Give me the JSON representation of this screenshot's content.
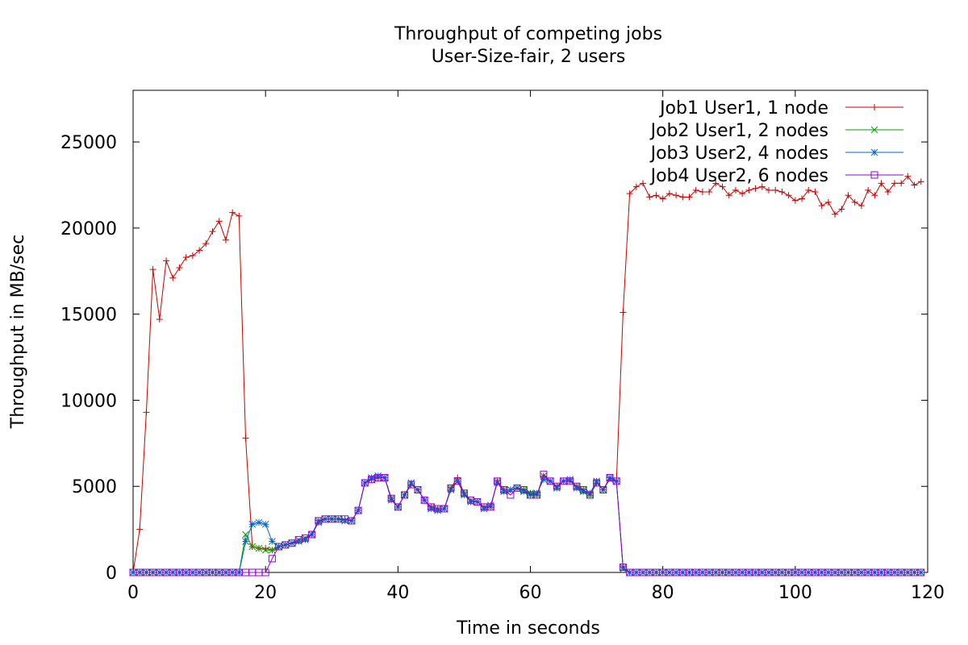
{
  "chart_data": {
    "type": "line",
    "title": "Throughput of competing jobs",
    "subtitle": "User-Size-fair, 2 users",
    "xlabel": "Time in seconds",
    "ylabel": "Throughput in MB/sec",
    "xlim": [
      0,
      120
    ],
    "ylim": [
      0,
      28000
    ],
    "xticks": [
      0,
      20,
      40,
      60,
      80,
      100,
      120
    ],
    "yticks": [
      0,
      5000,
      10000,
      15000,
      20000,
      25000
    ],
    "grid": false,
    "legend_position": "top-right",
    "series": [
      {
        "name": "Job1 User1, 1 node",
        "color": "#cc0000",
        "marker": "plus",
        "x": [
          0,
          1,
          2,
          3,
          4,
          5,
          6,
          7,
          8,
          9,
          10,
          11,
          12,
          13,
          14,
          15,
          16,
          17,
          18,
          19,
          20,
          21,
          22,
          23,
          24,
          25,
          26,
          27,
          28,
          29,
          30,
          31,
          32,
          33,
          34,
          35,
          36,
          37,
          38,
          39,
          40,
          41,
          42,
          43,
          44,
          45,
          46,
          47,
          48,
          49,
          50,
          51,
          52,
          53,
          54,
          55,
          56,
          57,
          58,
          59,
          60,
          61,
          62,
          63,
          64,
          65,
          66,
          67,
          68,
          69,
          70,
          71,
          72,
          73,
          74,
          75,
          76,
          77,
          78,
          79,
          80,
          81,
          82,
          83,
          84,
          85,
          86,
          87,
          88,
          89,
          90,
          91,
          92,
          93,
          94,
          95,
          96,
          97,
          98,
          99,
          100,
          101,
          102,
          103,
          104,
          105,
          106,
          107,
          108,
          109,
          110,
          111,
          112,
          113,
          114,
          115,
          116,
          117,
          118,
          119
        ],
        "values": [
          0,
          2500,
          9300,
          17600,
          14700,
          18100,
          17100,
          17700,
          18300,
          18400,
          18700,
          19100,
          19800,
          20400,
          19300,
          20900,
          20700,
          7800,
          1500,
          1400,
          1400,
          1300,
          1500,
          1600,
          1700,
          1800,
          1900,
          2200,
          3000,
          3100,
          3100,
          3100,
          3100,
          3000,
          3600,
          5200,
          5400,
          5500,
          5500,
          4300,
          3800,
          4500,
          5100,
          4800,
          4200,
          3800,
          3700,
          3700,
          4900,
          5500,
          4600,
          4100,
          4100,
          3800,
          3800,
          5300,
          4800,
          4800,
          4900,
          4800,
          4600,
          4500,
          5600,
          5300,
          5000,
          5300,
          5300,
          5000,
          4800,
          4500,
          5200,
          4800,
          5500,
          5300,
          15100,
          22000,
          22400,
          22600,
          21800,
          21900,
          21700,
          22000,
          21900,
          21800,
          21800,
          22200,
          22100,
          22100,
          22600,
          22400,
          21900,
          22200,
          22000,
          22200,
          22300,
          22400,
          22200,
          22200,
          22100,
          21900,
          21600,
          21700,
          22200,
          22100,
          21300,
          21500,
          20800,
          21100,
          21900,
          21500,
          21300,
          22200,
          21900,
          22600,
          22100,
          22600,
          22600,
          23000,
          22500,
          22700
        ]
      },
      {
        "name": "Job2 User1, 2 nodes",
        "color": "#00a000",
        "marker": "cross",
        "x": [
          0,
          1,
          2,
          3,
          4,
          5,
          6,
          7,
          8,
          9,
          10,
          11,
          12,
          13,
          14,
          15,
          16,
          17,
          18,
          19,
          20,
          21,
          22,
          23,
          24,
          25,
          26,
          27,
          28,
          29,
          30,
          31,
          32,
          33,
          34,
          35,
          36,
          37,
          38,
          39,
          40,
          41,
          42,
          43,
          44,
          45,
          46,
          47,
          48,
          49,
          50,
          51,
          52,
          53,
          54,
          55,
          56,
          57,
          58,
          59,
          60,
          61,
          62,
          63,
          64,
          65,
          66,
          67,
          68,
          69,
          70,
          71,
          72,
          73,
          74,
          75,
          76,
          77,
          78,
          79,
          80,
          81,
          82,
          83,
          84,
          85,
          86,
          87,
          88,
          89,
          90,
          91,
          92,
          93,
          94,
          95,
          96,
          97,
          98,
          99,
          100,
          101,
          102,
          103,
          104,
          105,
          106,
          107,
          108,
          109,
          110,
          111,
          112,
          113,
          114,
          115,
          116,
          117,
          118,
          119
        ],
        "values": [
          0,
          0,
          0,
          0,
          0,
          0,
          0,
          0,
          0,
          0,
          0,
          0,
          0,
          0,
          0,
          0,
          0,
          2200,
          1500,
          1400,
          1300,
          1300,
          1500,
          1600,
          1700,
          1900,
          2000,
          2200,
          3000,
          3100,
          3100,
          3100,
          3000,
          3000,
          3600,
          5200,
          5400,
          5500,
          5500,
          4300,
          3800,
          4500,
          5200,
          4800,
          4200,
          3800,
          3700,
          3700,
          4900,
          5300,
          4600,
          4200,
          4100,
          3800,
          3800,
          5300,
          4800,
          4800,
          4900,
          4800,
          4600,
          4500,
          5600,
          5300,
          5000,
          5300,
          5300,
          5000,
          4800,
          4500,
          5200,
          4800,
          5400,
          5300,
          200,
          0,
          0,
          0,
          0,
          0,
          0,
          0,
          0,
          0,
          0,
          0,
          0,
          0,
          0,
          0,
          0,
          0,
          0,
          0,
          0,
          0,
          0,
          0,
          0,
          0,
          0,
          0,
          0,
          0,
          0,
          0,
          0,
          0,
          0,
          0,
          0,
          0,
          0,
          0,
          0,
          0,
          0,
          0,
          0,
          0
        ]
      },
      {
        "name": "Job3 User2, 4 nodes",
        "color": "#0066cc",
        "marker": "star",
        "x": [
          0,
          1,
          2,
          3,
          4,
          5,
          6,
          7,
          8,
          9,
          10,
          11,
          12,
          13,
          14,
          15,
          16,
          17,
          18,
          19,
          20,
          21,
          22,
          23,
          24,
          25,
          26,
          27,
          28,
          29,
          30,
          31,
          32,
          33,
          34,
          35,
          36,
          37,
          38,
          39,
          40,
          41,
          42,
          43,
          44,
          45,
          46,
          47,
          48,
          49,
          50,
          51,
          52,
          53,
          54,
          55,
          56,
          57,
          58,
          59,
          60,
          61,
          62,
          63,
          64,
          65,
          66,
          67,
          68,
          69,
          70,
          71,
          72,
          73,
          74,
          75,
          76,
          77,
          78,
          79,
          80,
          81,
          82,
          83,
          84,
          85,
          86,
          87,
          88,
          89,
          90,
          91,
          92,
          93,
          94,
          95,
          96,
          97,
          98,
          99,
          100,
          101,
          102,
          103,
          104,
          105,
          106,
          107,
          108,
          109,
          110,
          111,
          112,
          113,
          114,
          115,
          116,
          117,
          118,
          119
        ],
        "values": [
          0,
          0,
          0,
          0,
          0,
          0,
          0,
          0,
          0,
          0,
          0,
          0,
          0,
          0,
          0,
          0,
          0,
          1800,
          2800,
          2900,
          2800,
          1800,
          1500,
          1600,
          1700,
          1800,
          1900,
          2200,
          2900,
          3100,
          3100,
          3100,
          3000,
          3000,
          3600,
          5200,
          5500,
          5600,
          5500,
          4200,
          3800,
          4500,
          5200,
          4800,
          4200,
          3700,
          3600,
          3700,
          4800,
          5300,
          4500,
          4100,
          4100,
          3700,
          3900,
          5200,
          4700,
          4800,
          4900,
          4700,
          4500,
          4600,
          5400,
          5300,
          4900,
          5300,
          5400,
          4900,
          4700,
          4600,
          5300,
          4800,
          5500,
          5300,
          300,
          0,
          0,
          0,
          0,
          0,
          0,
          0,
          0,
          0,
          0,
          0,
          0,
          0,
          0,
          0,
          0,
          0,
          0,
          0,
          0,
          0,
          0,
          0,
          0,
          0,
          0,
          0,
          0,
          0,
          0,
          0,
          0,
          0,
          0,
          0,
          0,
          0,
          0,
          0,
          0,
          0,
          0,
          0,
          0,
          0
        ]
      },
      {
        "name": "Job4 User2, 6 nodes",
        "color": "#9400d3",
        "marker": "square",
        "x": [
          0,
          1,
          2,
          3,
          4,
          5,
          6,
          7,
          8,
          9,
          10,
          11,
          12,
          13,
          14,
          15,
          16,
          17,
          18,
          19,
          20,
          21,
          22,
          23,
          24,
          25,
          26,
          27,
          28,
          29,
          30,
          31,
          32,
          33,
          34,
          35,
          36,
          37,
          38,
          39,
          40,
          41,
          42,
          43,
          44,
          45,
          46,
          47,
          48,
          49,
          50,
          51,
          52,
          53,
          54,
          55,
          56,
          57,
          58,
          59,
          60,
          61,
          62,
          63,
          64,
          65,
          66,
          67,
          68,
          69,
          70,
          71,
          72,
          73,
          74,
          75,
          76,
          77,
          78,
          79,
          80,
          81,
          82,
          83,
          84,
          85,
          86,
          87,
          88,
          89,
          90,
          91,
          92,
          93,
          94,
          95,
          96,
          97,
          98,
          99,
          100,
          101,
          102,
          103,
          104,
          105,
          106,
          107,
          108,
          109,
          110,
          111,
          112,
          113,
          114,
          115,
          116,
          117,
          118,
          119
        ],
        "values": [
          0,
          0,
          0,
          0,
          0,
          0,
          0,
          0,
          0,
          0,
          0,
          0,
          0,
          0,
          0,
          0,
          0,
          0,
          0,
          0,
          0,
          800,
          1500,
          1600,
          1700,
          1900,
          2000,
          2200,
          3000,
          3100,
          3100,
          3100,
          3100,
          3000,
          3600,
          5200,
          5400,
          5500,
          5500,
          4300,
          3800,
          4500,
          5100,
          4800,
          4200,
          3800,
          3700,
          3700,
          4900,
          5300,
          4600,
          4200,
          4100,
          3800,
          3800,
          5300,
          4800,
          4500,
          4900,
          4800,
          4500,
          4500,
          5700,
          5300,
          5000,
          5300,
          5300,
          5000,
          4800,
          4500,
          5200,
          4800,
          5500,
          5300,
          300,
          0,
          0,
          0,
          0,
          0,
          0,
          0,
          0,
          0,
          0,
          0,
          0,
          0,
          0,
          0,
          0,
          0,
          0,
          0,
          0,
          0,
          0,
          0,
          0,
          0,
          0,
          0,
          0,
          0,
          0,
          0,
          0,
          0,
          0,
          0,
          0,
          0,
          0,
          0,
          0,
          0,
          0,
          0,
          0,
          0
        ]
      }
    ]
  }
}
